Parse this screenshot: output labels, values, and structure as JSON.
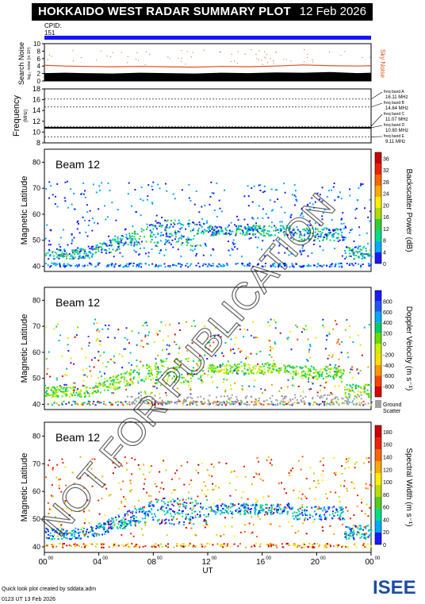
{
  "header": {
    "title": "HOKKAIDO WEST RADAR SUMMARY PLOT",
    "date": "12 Feb 2026",
    "cpid_label": "CPID:",
    "cpid_value": "151"
  },
  "colors": {
    "cpid_bar": "#1414ff",
    "noise_search": "#000000",
    "noise_sky": "#e0501e",
    "freq_line": "#000000",
    "ground_scatter": "#a0a0a0"
  },
  "footer": {
    "credit": "Quick look plot created by sddata.adm",
    "time": "0123 UT 13 Feb 2026",
    "logo_text": "ISEE"
  },
  "chart_data": [
    {
      "type": "line",
      "name": "noise-panel",
      "ylabel": "Search Noise",
      "ylabel_sub": "log₁₀ noise (in 10³)",
      "right_label": "Sky Noise",
      "yticks": [
        "0",
        "2",
        "4",
        "6",
        "8",
        "10"
      ],
      "ylim": [
        0,
        10
      ],
      "xlim_hours": [
        0,
        24
      ],
      "series": [
        {
          "name": "Sky Noise",
          "x": [
            0,
            1.5,
            3,
            5,
            7,
            9,
            11,
            13,
            15,
            17,
            19,
            21,
            23,
            24
          ],
          "values": [
            4.2,
            4.0,
            3.9,
            3.8,
            3.9,
            3.8,
            3.7,
            3.9,
            3.8,
            4.0,
            4.3,
            4.1,
            4.0,
            4.1
          ]
        },
        {
          "values": [
            2.1,
            2.2,
            2.1,
            2.0,
            2.2,
            2.1,
            2.0,
            2.2,
            2.1,
            2.3,
            2.2,
            2.4,
            2.1,
            2.2
          ],
          "x": [
            0,
            1.5,
            3,
            5,
            7,
            9,
            11,
            13,
            15,
            17,
            19,
            21,
            23,
            24
          ]
        }
      ]
    },
    {
      "type": "line",
      "name": "frequency-panel",
      "ylabel": "Frequency",
      "ylabel_sub": "(MHz)",
      "yticks": [
        "8",
        "10",
        "12",
        "14",
        "16",
        "18"
      ],
      "ylim": [
        8,
        18
      ],
      "freq_bands": [
        {
          "label": "freq band A",
          "mhz": "16.11 MHz",
          "value": 16.11
        },
        {
          "label": "freq band B",
          "mhz": "14.64 MHz",
          "value": 14.64
        },
        {
          "label": "freq band C",
          "mhz": "11.07 MHz",
          "value": 11.07
        },
        {
          "label": "freq band D",
          "mhz": "10.80 MHz",
          "value": 10.8
        },
        {
          "label": "freq band E",
          "mhz": "9.11 MHz",
          "value": 9.11
        }
      ],
      "operating_freq": 10.8
    },
    {
      "type": "heatmap",
      "name": "backscatter-power",
      "beam_label": "Beam 12",
      "ylabel": "Magnetic Latitude",
      "yticks": [
        "40",
        "50",
        "60",
        "70",
        "80"
      ],
      "ylim": [
        38,
        85
      ],
      "colorbar_label": "Backscatter Power (dB)",
      "colorbar_ticks": [
        "0",
        "4",
        "8",
        "12",
        "16",
        "20",
        "24",
        "28",
        "32",
        "36"
      ],
      "colorbar_colors": [
        "#1a1aff",
        "#00aaff",
        "#00dd88",
        "#33cc33",
        "#aadd00",
        "#ffee00",
        "#ffaa00",
        "#ff6600",
        "#ee2200",
        "#cc0000"
      ]
    },
    {
      "type": "heatmap",
      "name": "doppler-velocity",
      "beam_label": "Beam 12",
      "ylabel": "Magnetic Latitude",
      "yticks": [
        "40",
        "50",
        "60",
        "70",
        "80"
      ],
      "ylim": [
        38,
        85
      ],
      "colorbar_label": "Doppler Velocity (m s⁻¹)",
      "colorbar_ticks": [
        "800",
        "600",
        "400",
        "200",
        "0",
        "-200",
        "-400",
        "-600",
        "-800"
      ],
      "colorbar_colors": [
        "#1a1aff",
        "#2255ff",
        "#00aaff",
        "#00cc66",
        "#66dd00",
        "#ccee00",
        "#ffdd00",
        "#ff9900",
        "#ff4400",
        "#dd0000"
      ],
      "ground_label": "Ground",
      "ground_label2": "Scatter"
    },
    {
      "type": "heatmap",
      "name": "spectral-width",
      "beam_label": "Beam 12",
      "ylabel": "Magnetic Latitude",
      "yticks": [
        "40",
        "50",
        "60",
        "70",
        "80"
      ],
      "ylim": [
        38,
        85
      ],
      "xlabel": "UT",
      "xticks": [
        "00",
        "04",
        "08",
        "12",
        "16",
        "20",
        "00"
      ],
      "xtick_sup": "00",
      "colorbar_label": "Spectral Width (m s⁻¹)",
      "colorbar_ticks": [
        "0",
        "20",
        "40",
        "60",
        "80",
        "100",
        "120",
        "140",
        "160",
        "180"
      ],
      "colorbar_colors": [
        "#1a1aff",
        "#00aaff",
        "#00dd88",
        "#55cc22",
        "#bbdd00",
        "#ffee00",
        "#ffaa00",
        "#ff6600",
        "#ee2200",
        "#cc0000"
      ]
    }
  ]
}
